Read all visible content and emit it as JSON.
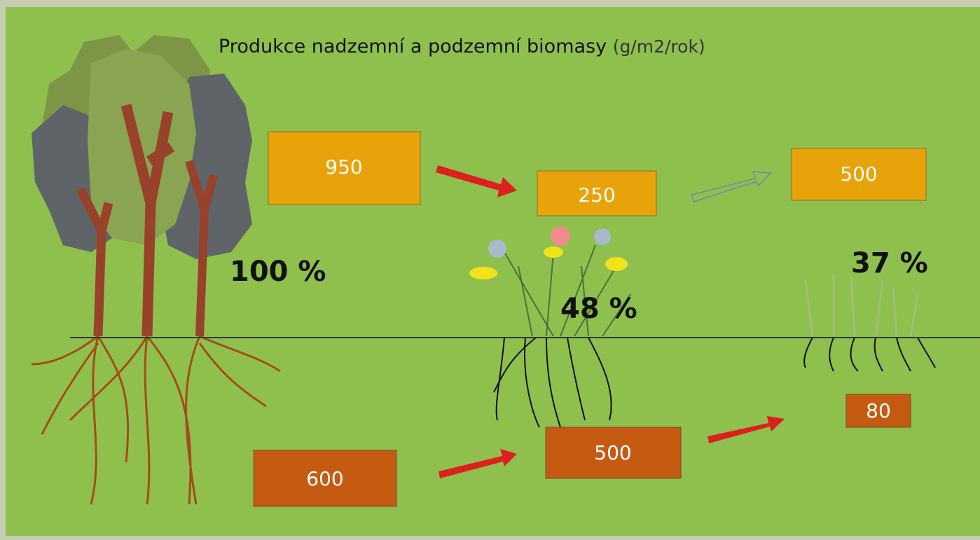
{
  "title": {
    "main": "Produkce nadzemní a podzemní biomasy",
    "unit": "(g/m2/rok)"
  },
  "above_ground": [
    {
      "label": "950"
    },
    {
      "label": "250"
    },
    {
      "label": "500"
    }
  ],
  "below_ground": [
    {
      "label": "600"
    },
    {
      "label": "500"
    },
    {
      "label": "80"
    }
  ],
  "percentages": [
    "100 %",
    "48 %",
    "37 %"
  ]
}
